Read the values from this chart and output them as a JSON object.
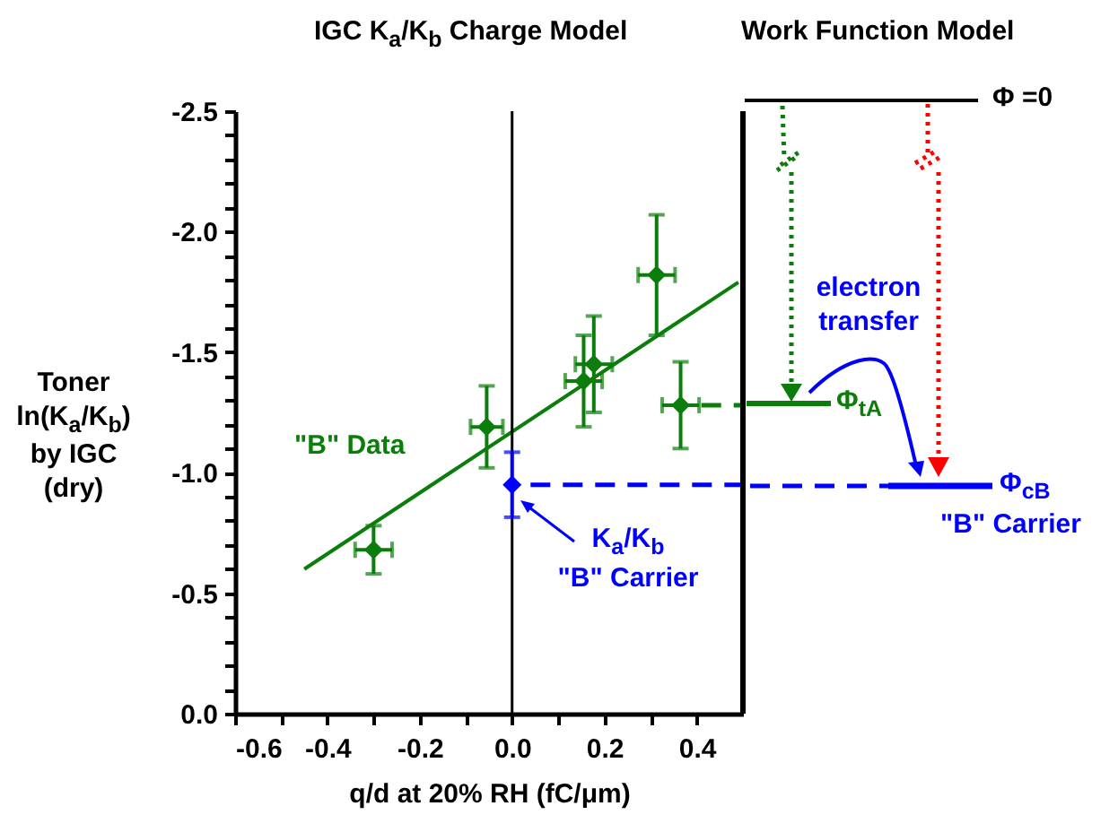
{
  "chart_data": {
    "type": "scatter",
    "title": "IGC K$_{a}$/K$_{b}$ Charge Model",
    "xlabel": "q/d at 20% RH (fC/μm)",
    "ylabel": "Toner\nln(K$_{a}$/K$_{b}$)\nby IGC\n(dry)",
    "xlim": [
      -0.6,
      0.5
    ],
    "xticks": [
      -0.6,
      {
        "value": -0.5,
        "label": null
      },
      -0.4,
      {
        "value": -0.3,
        "label": null
      },
      -0.2,
      {
        "value": -0.1,
        "label": null
      },
      {
        "value": 0,
        "label": "0.0"
      },
      {
        "value": 0.1,
        "label": null
      },
      0.2,
      {
        "value": 0.3,
        "label": null
      },
      0.4
    ],
    "ylim": [
      0,
      -2.5
    ],
    "yticks": [
      {
        "value": 0,
        "label": "0.0"
      },
      {
        "value": -0.1,
        "label": null
      },
      {
        "value": -0.2,
        "label": null
      },
      {
        "value": -0.3,
        "label": null
      },
      {
        "value": -0.4,
        "label": null
      },
      -0.5,
      {
        "value": -0.6,
        "label": null
      },
      {
        "value": -0.7,
        "label": null
      },
      {
        "value": -0.8,
        "label": null
      },
      {
        "value": -0.9,
        "label": null
      },
      {
        "value": -1,
        "label": "-1.0"
      },
      {
        "value": -1.1,
        "label": null
      },
      {
        "value": -1.2,
        "label": null
      },
      {
        "value": -1.3,
        "label": null
      },
      {
        "value": -1.4,
        "label": null
      },
      -1.5,
      {
        "value": -1.6,
        "label": null
      },
      {
        "value": -1.7,
        "label": null
      },
      {
        "value": -1.8,
        "label": null
      },
      {
        "value": -1.9,
        "label": null
      },
      {
        "value": -2,
        "label": "-2.0"
      },
      {
        "value": -2.1,
        "label": null
      },
      {
        "value": -2.2,
        "label": null
      },
      {
        "value": -2.3,
        "label": null
      },
      {
        "value": -2.4,
        "label": null
      },
      -2.5
    ],
    "grid": false,
    "series": [
      {
        "name": "\"B\" Data",
        "marker": "diamond",
        "color": "#0a7d0a",
        "x": [
          -0.3,
          -0.055,
          0.155,
          0.177,
          0.313,
          0.365
        ],
        "values": [
          -0.68,
          -1.19,
          -1.38,
          -1.45,
          -1.82,
          -1.28
        ],
        "errors": [
          0.1,
          0.17,
          0.19,
          0.2,
          0.25,
          0.18
        ],
        "xerrors": [
          0.04,
          0.035,
          0.04,
          0.04,
          0.04,
          0.04
        ]
      },
      {
        "name": "K$_{a}$/K$_{b}$\n\"B\" Carrier",
        "marker": "diamond",
        "color": "#0000ff",
        "x": [
          0
        ],
        "values": [
          -0.95
        ],
        "errors": [
          0.135
        ]
      },
      {
        "type": "line",
        "color": "#0a7d0a",
        "x": [
          -0.45,
          0.49
        ],
        "values": [
          -0.6,
          -1.79
        ]
      },
      {
        "type": "line",
        "line_style": "dashed",
        "color": "#0a7d0a",
        "x": [
          0.41,
          0.5
        ],
        "values": [
          -1.28,
          -1.28
        ]
      },
      {
        "type": "line",
        "line_style": "dashed",
        "color": "#0000ff",
        "x": [
          0.04,
          0.5
        ],
        "values": [
          -0.95,
          -0.95
        ]
      }
    ],
    "ref_lines": [
      {
        "axis": "x",
        "value": 0,
        "color": "#000000"
      }
    ],
    "annotations": [
      "Work Function Model",
      "Φ =0",
      "electron\ntransfer",
      "Φ$_{tA}$",
      "Φ$_{cB}$",
      "\"B\" Carrier"
    ]
  }
}
